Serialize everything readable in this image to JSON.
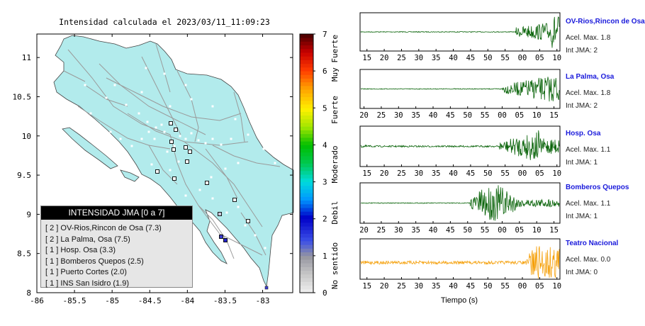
{
  "map": {
    "title": "Intensidad calculada el 2023/03/11_11:09:23",
    "x_ticks": [
      "-86",
      "-85.5",
      "-85",
      "-84.5",
      "-84",
      "-83.5",
      "-83"
    ],
    "y_ticks": [
      "11",
      "10.5",
      "10",
      "9.5",
      "9",
      "8.5",
      "8"
    ],
    "land_color": "#b2ebec",
    "legend": {
      "title": "INTENSIDAD JMA [0 a 7]",
      "rows": [
        "[ 2 ]  OV-Rios,Rincon de Osa (7.3)",
        "[ 2 ]  La Palma, Osa (7.5)",
        "[ 1 ]  Hosp. Osa (3.3)",
        "[ 1 ]  Bomberos Quepos (2.5)",
        "[ 1 ]  Puerto Cortes (2.0)",
        "[ 1 ]  INS San Isidro (1.9)"
      ]
    }
  },
  "colorbar": {
    "ticks": [
      "7",
      "6",
      "5",
      "4",
      "3",
      "2",
      "1",
      "0"
    ],
    "labels": [
      "Muy Fuerte",
      "Fuerte",
      "Moderado",
      "Debil",
      "No sentido"
    ]
  },
  "seismograms": {
    "xlabel": "Tiempo (s)",
    "stations": [
      {
        "name": "OV-Rios,Rincon de Osa",
        "accel": "Acel. Max. 1.8",
        "jma": "Int JMA: 2",
        "color": "#0a640a",
        "ticks": [
          "15",
          "20",
          "25",
          "30",
          "35",
          "40",
          "45",
          "50",
          "55",
          "00",
          "05",
          "10"
        ]
      },
      {
        "name": "La Palma, Osa",
        "accel": "Acel. Max. 1.8",
        "jma": "Int JMA: 2",
        "color": "#0a640a",
        "ticks": [
          "20",
          "25",
          "30",
          "35",
          "40",
          "45",
          "50",
          "55",
          "00",
          "05",
          "10",
          "15"
        ]
      },
      {
        "name": "Hosp. Osa",
        "accel": "Acel. Max. 1.1",
        "jma": "Int JMA: 1",
        "color": "#0a640a",
        "ticks": [
          "15",
          "20",
          "25",
          "30",
          "35",
          "40",
          "45",
          "50",
          "55",
          "00",
          "05",
          "10"
        ]
      },
      {
        "name": "Bomberos Quepos",
        "accel": "Acel. Max. 1.1",
        "jma": "Int JMA: 1",
        "color": "#0a640a",
        "ticks": [
          "20",
          "25",
          "30",
          "35",
          "40",
          "45",
          "50",
          "55",
          "00",
          "05",
          "10",
          "15"
        ]
      },
      {
        "name": "Teatro Nacional",
        "accel": "Acel. Max. 0.0",
        "jma": "Int JMA: 0",
        "color": "#f5a00a",
        "ticks": [
          "15",
          "20",
          "25",
          "30",
          "35",
          "40",
          "45",
          "50",
          "55",
          "00",
          "05",
          "10"
        ]
      }
    ]
  },
  "chart_data": [
    {
      "type": "scatter",
      "title": "Intensidad calculada el 2023/03/11_11:09:23",
      "xlim": [
        -86,
        -82.6
      ],
      "ylim": [
        8,
        11.3
      ],
      "colorbar_range": [
        0,
        7
      ],
      "legend_placement": "bottom-left",
      "series": [
        {
          "name": "OV-Rios,Rincon de Osa",
          "jma": 2,
          "value": 7.3
        },
        {
          "name": "La Palma, Osa",
          "jma": 2,
          "value": 7.5
        },
        {
          "name": "Hosp. Osa",
          "jma": 1,
          "value": 3.3
        },
        {
          "name": "Bomberos Quepos",
          "jma": 1,
          "value": 2.5
        },
        {
          "name": "Puerto Cortes",
          "jma": 1,
          "value": 2.0
        },
        {
          "name": "INS San Isidro",
          "jma": 1,
          "value": 1.9
        }
      ]
    },
    {
      "type": "line",
      "xlabel": "Tiempo (s)",
      "series": [
        {
          "name": "OV-Rios,Rincon de Osa",
          "accel_max": 1.8,
          "jma": 2
        },
        {
          "name": "La Palma, Osa",
          "accel_max": 1.8,
          "jma": 2
        },
        {
          "name": "Hosp. Osa",
          "accel_max": 1.1,
          "jma": 1
        },
        {
          "name": "Bomberos Quepos",
          "accel_max": 1.1,
          "jma": 1
        },
        {
          "name": "Teatro Nacional",
          "accel_max": 0.0,
          "jma": 0
        }
      ]
    }
  ]
}
